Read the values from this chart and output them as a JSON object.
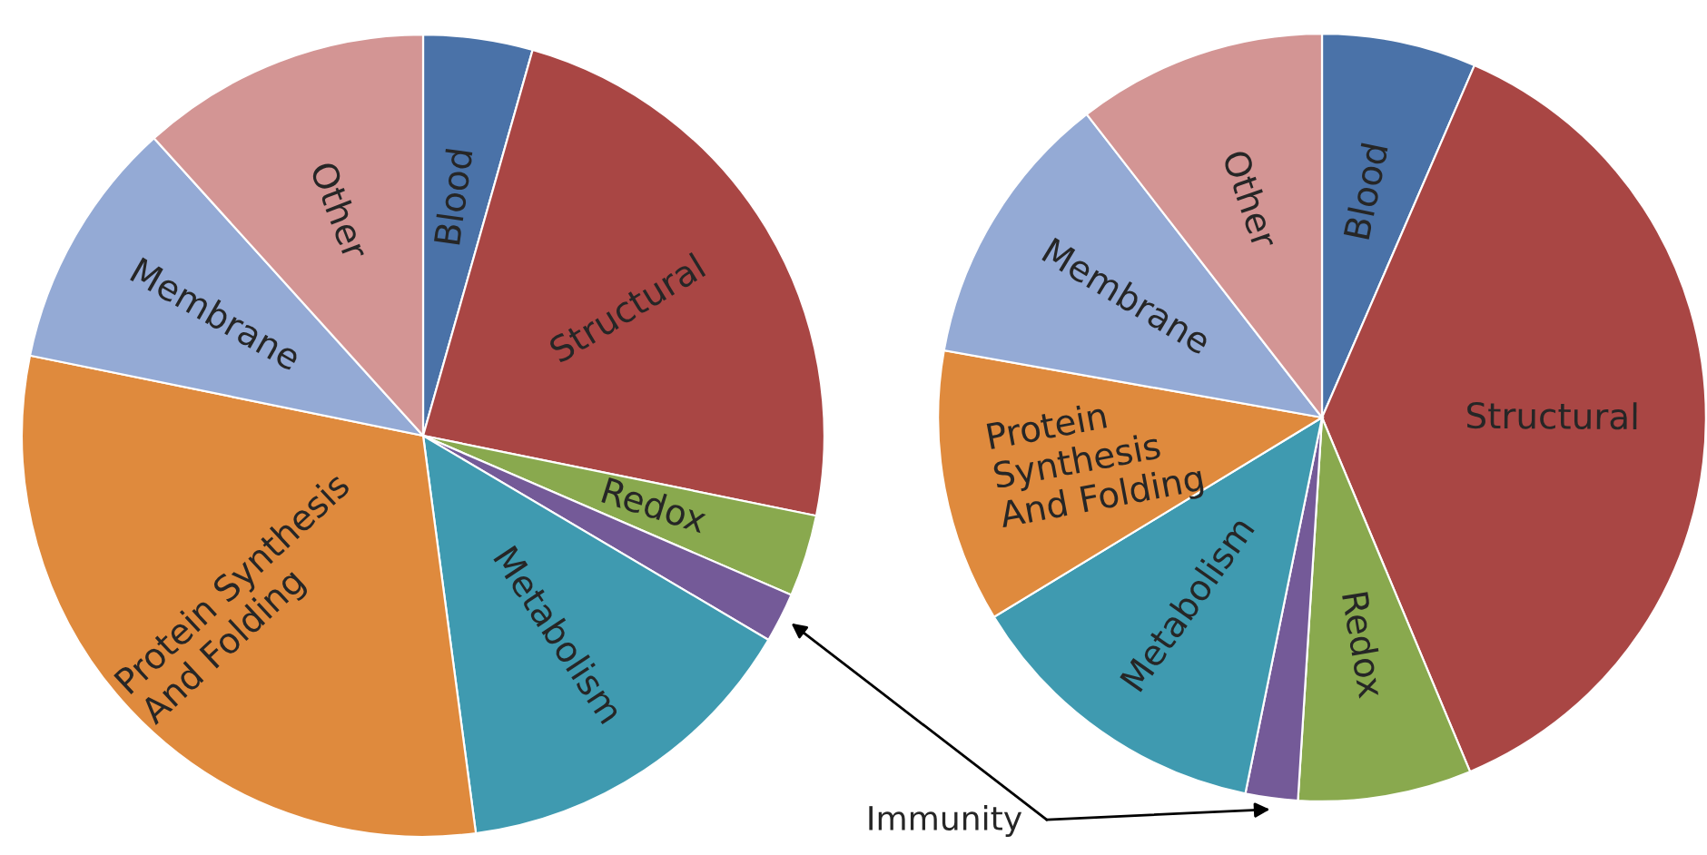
{
  "chart_data": [
    {
      "type": "pie",
      "categories": [
        "Blood",
        "Structural",
        "Redox",
        null,
        "Metabolism",
        "Protein Synthesis\nAnd Folding",
        "Membrane",
        "Other"
      ],
      "values": [
        4.4,
        23.8,
        3.3,
        2.0,
        14.4,
        30.3,
        10.1,
        11.7
      ],
      "colors": [
        "#4a72a8",
        "#a94644",
        "#89a94e",
        "#745a98",
        "#3f9ab0",
        "#df8a3d",
        "#94aad5",
        "#d39594"
      ]
    },
    {
      "type": "pie",
      "categories": [
        "Blood",
        "Structural",
        "Redox",
        null,
        "Metabolism",
        "Protein\nSynthesis\nAnd Folding",
        "Membrane",
        "Other"
      ],
      "values": [
        6.5,
        37.2,
        7.3,
        2.2,
        13.1,
        11.5,
        11.7,
        10.5
      ],
      "colors": [
        "#4a72a8",
        "#a94644",
        "#89a94e",
        "#745a98",
        "#3f9ab0",
        "#df8a3d",
        "#94aad5",
        "#d39594"
      ],
      "annotations": [
        "Immunity"
      ]
    }
  ]
}
